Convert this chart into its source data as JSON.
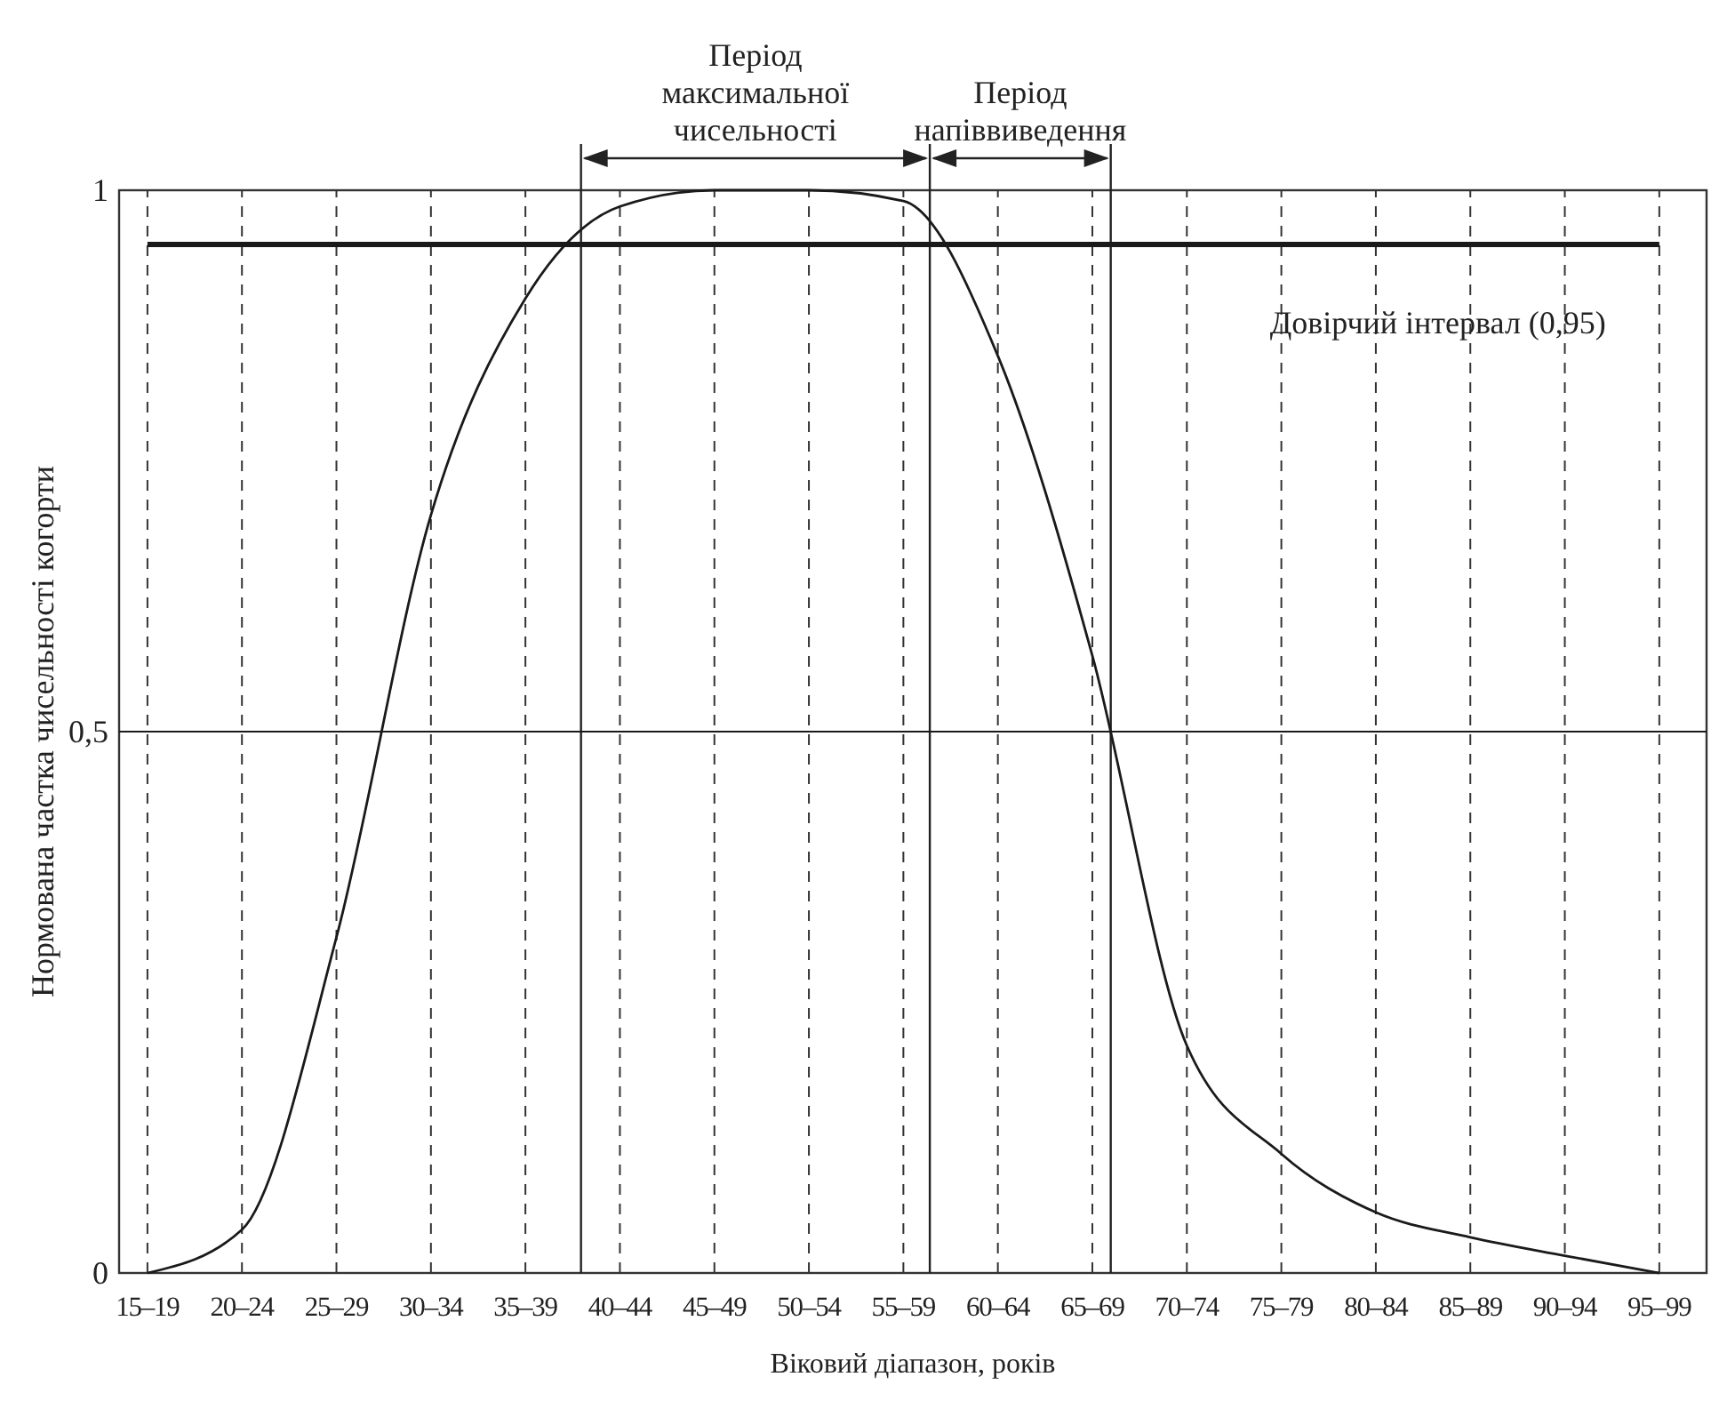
{
  "chart_data": {
    "type": "line",
    "xlabel": "Віковий діапазон, років",
    "ylabel": "Нормована частка чисельності когорти",
    "categories": [
      "15–19",
      "20–24",
      "25–29",
      "30–34",
      "35–39",
      "40–44",
      "45–49",
      "50–54",
      "55–59",
      "60–64",
      "65–69",
      "70–74",
      "75–79",
      "80–84",
      "85–89",
      "90–94",
      "95–99"
    ],
    "ylim": [
      0,
      1
    ],
    "yticks": [
      0,
      {
        "value": 0.5,
        "label": "0,5"
      },
      1
    ],
    "grid": "x",
    "marker": "none",
    "line_style": "solid",
    "series": [
      {
        "color": "#1a1a1a",
        "values": [
          0.0,
          0.04,
          0.31,
          0.7,
          0.9,
          0.985,
          1.0,
          1.0,
          0.99,
          0.847,
          0.57,
          0.21,
          0.11,
          0.056,
          0.033,
          0.016,
          0
        ]
      }
    ],
    "ref_lines": [
      {
        "axis": "y",
        "value": 0.95,
        "label": "Довірчий інтервал (0,95)",
        "color": "#1a1a1a"
      },
      {
        "axis": "y",
        "value": 0.5,
        "color": "#1a1a1a"
      }
    ],
    "annotations": [
      "Період\nмаксимальної\nчисельності",
      "Період\nнапіввиведення"
    ]
  }
}
